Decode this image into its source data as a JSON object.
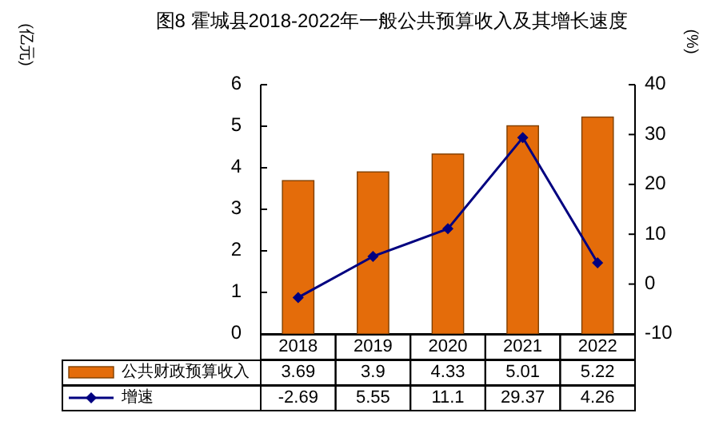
{
  "chart_data": {
    "type": "bar",
    "title": "图8 霍城县2018-2022年一般公共预算收入及其增长速度",
    "annotations": [
      "(亿元)",
      "(%)"
    ],
    "categories": [
      "2018",
      "2019",
      "2020",
      "2021",
      "2022"
    ],
    "series": [
      {
        "name": "公共财政预算收入",
        "type": "bar",
        "color": "#e46c0a",
        "values": [
          3.69,
          3.9,
          4.33,
          5.01,
          5.22
        ]
      },
      {
        "name": "增速",
        "type": "line",
        "axis": "y2",
        "color": "#000080",
        "marker": "diamond",
        "values": [
          -2.69,
          5.55,
          11.1,
          29.37,
          4.26
        ]
      }
    ],
    "ylim": [
      0,
      6
    ],
    "yticks": [
      0,
      1,
      2,
      3,
      4,
      5,
      6
    ],
    "y2lim": [
      -10,
      40
    ],
    "y2ticks": [
      -10,
      0,
      10,
      20,
      30,
      40
    ],
    "data_labels": true,
    "legend": "bottom",
    "grid": false
  }
}
